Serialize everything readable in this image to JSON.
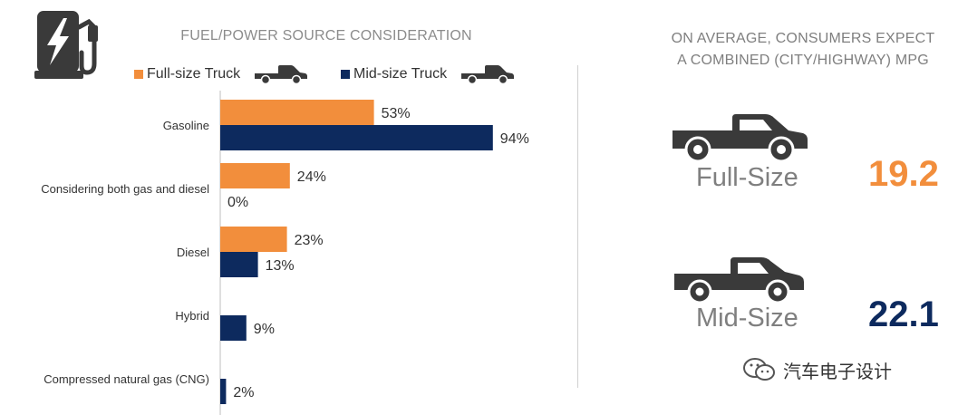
{
  "chart_data": {
    "type": "bar",
    "orientation": "horizontal",
    "title": "FUEL/POWER SOURCE CONSIDERATION",
    "categories": [
      "Gasoline",
      "Considering both gas and diesel",
      "Diesel",
      "Hybrid",
      "Compressed natural gas (CNG)"
    ],
    "series": [
      {
        "name": "Full-size Truck",
        "color": "#f28e3c",
        "values": [
          53,
          24,
          23,
          null,
          null
        ],
        "labels": [
          "53%",
          "24%",
          "23%",
          "",
          ""
        ]
      },
      {
        "name": "Mid-size Truck",
        "color": "#0d2a5e",
        "values": [
          94,
          0,
          13,
          9,
          2
        ],
        "labels": [
          "94%",
          "0%",
          "13%",
          "9%",
          "2%"
        ]
      }
    ],
    "xlim": [
      0,
      100
    ],
    "unit": "%",
    "grid": false
  },
  "legend": {
    "full_size_label": "Full-size Truck",
    "mid_size_label": "Mid-size Truck"
  },
  "mpg": {
    "title_line1": "ON AVERAGE, CONSUMERS EXPECT",
    "title_line2": "A COMBINED (CITY/HIGHWAY) MPG",
    "full_size_label": "Full-Size",
    "full_size_value": "19.2",
    "full_size_color": "#f28e3c",
    "mid_size_label": "Mid-Size",
    "mid_size_value": "22.1",
    "mid_size_color": "#0d2a5e"
  },
  "watermark": {
    "text": "汽车电子设计"
  },
  "icons": {
    "header": "fuel-pump-lightning-icon",
    "truck": "pickup-truck-icon",
    "watermark": "wechat-icon"
  }
}
